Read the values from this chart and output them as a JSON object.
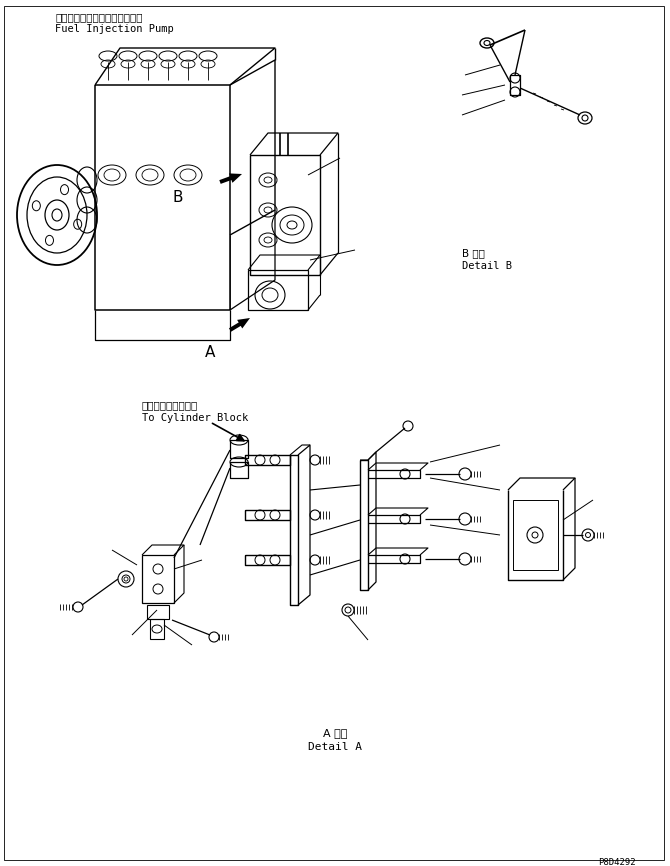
{
  "background_color": "#ffffff",
  "text_color": "#000000",
  "fig_width": 6.7,
  "fig_height": 8.66,
  "dpi": 100,
  "labels": {
    "fuel_pump_jp": "フェルインジェクションポンプ",
    "fuel_pump_en": "Fuel Injection Pump",
    "detail_b_jp": "B 詳細",
    "detail_b_en": "Detail B",
    "cylinder_jp": "シリンダブロックへ",
    "cylinder_en": "To Cylinder Block",
    "detail_a_jp": "A 詳細",
    "detail_a_en": "Detail A",
    "label_a": "A",
    "label_b": "B",
    "part_number": "P8D4292"
  }
}
